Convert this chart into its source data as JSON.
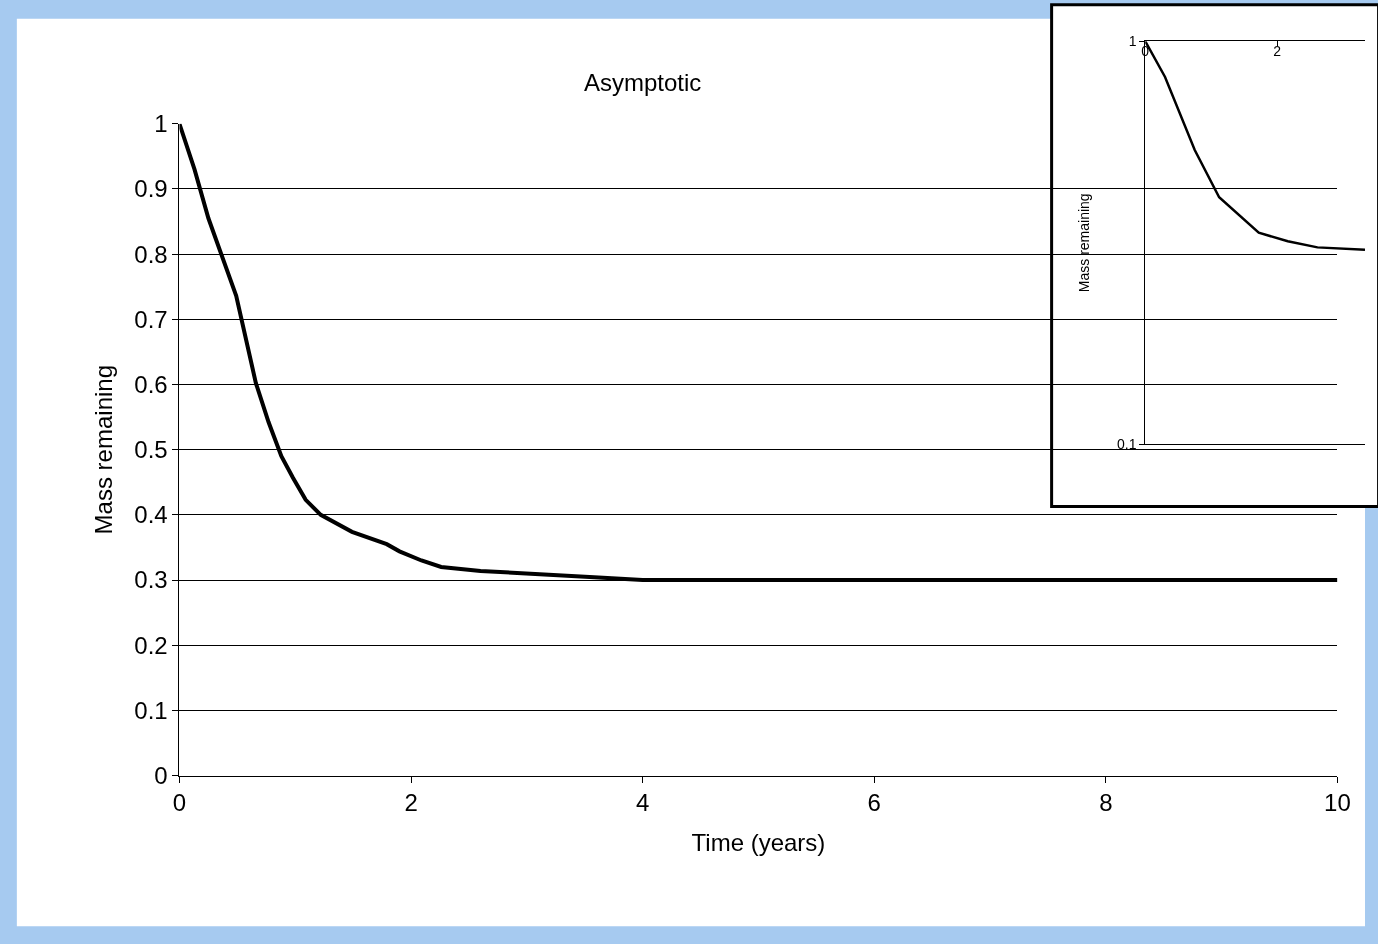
{
  "chart_data": [
    {
      "type": "line",
      "title": "Asymptotic",
      "xlabel": "Time (years)",
      "ylabel": "Mass remaining",
      "x": [
        0,
        0.13,
        0.25,
        0.49,
        0.66,
        0.77,
        0.88,
        0.98,
        1.09,
        1.22,
        1.49,
        1.79,
        1.9,
        2.09,
        2.26,
        2.6,
        3.19,
        3.62,
        4,
        10
      ],
      "series": [
        {
          "color": "#000000",
          "values": [
            1,
            0.93,
            0.855,
            0.736,
            0.602,
            0.542,
            0.49,
            0.457,
            0.423,
            0.4,
            0.374,
            0.355,
            0.344,
            0.33,
            0.32,
            0.314,
            0.308,
            0.304,
            0.3,
            0.3
          ]
        }
      ],
      "xlim": [
        0,
        10
      ],
      "ylim": [
        0,
        1
      ],
      "xticks": [
        0,
        2,
        4,
        6,
        8,
        10
      ],
      "yticks": [
        0,
        0.1,
        0.2,
        0.3,
        0.4,
        0.5,
        0.6,
        0.7,
        0.8,
        0.9,
        1
      ],
      "grid": "y",
      "line_style": "solid"
    },
    {
      "type": "line",
      "ylabel": "Mass remaining",
      "x": [
        0,
        0.3,
        0.75,
        1.12,
        1.72,
        2.16,
        2.61,
        3.33
      ],
      "series": [
        {
          "color": "#000000",
          "values": [
            1,
            0.815,
            0.537,
            0.41,
            0.335,
            0.319,
            0.308,
            0.304
          ]
        }
      ],
      "xlim": [
        0,
        3.33
      ],
      "ylim": [
        0.1,
        1
      ],
      "xticks": [
        0,
        2
      ],
      "yticks": [
        0.1,
        1
      ],
      "log": "y",
      "grid": "y",
      "line_style": "solid"
    }
  ]
}
